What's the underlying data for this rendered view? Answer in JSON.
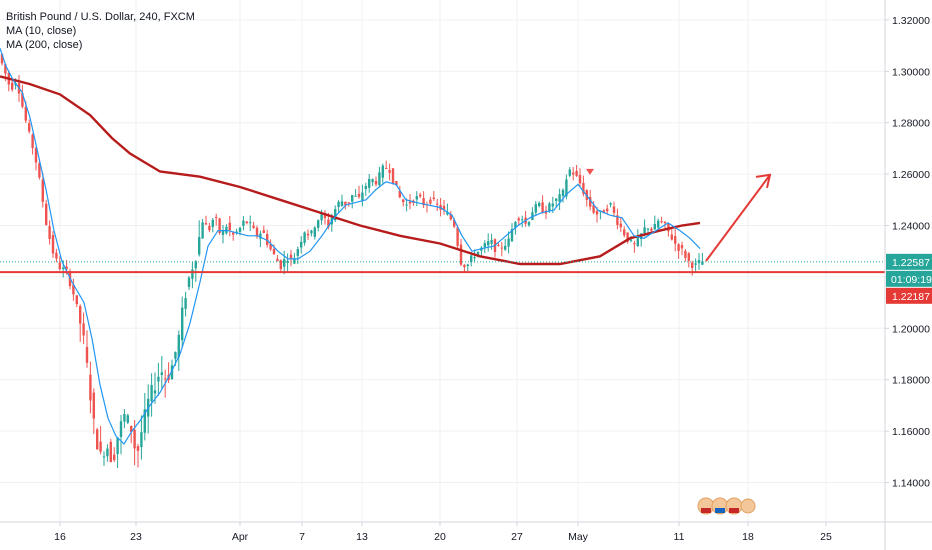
{
  "legend": {
    "title": "British Pound / U.S. Dollar, 240, FXCM",
    "ma1": "MA (10, close)",
    "ma2": "MA (200, close)"
  },
  "colors": {
    "up": "#26a69a",
    "down": "#ef5350",
    "ma10": "#2196f3",
    "ma200": "#b71c1c",
    "support": "#e53935",
    "arrow": "#e53935",
    "current": "#26a69a"
  },
  "price_tags": {
    "current": "1.22587",
    "countdown": "01:09:19",
    "line": "1.22187"
  },
  "events_icon": "economic-events-icon",
  "chart_data": {
    "type": "candlestick",
    "symbol": "GBPUSD",
    "timeframe": "240",
    "x_tick_labels": [
      "16",
      "23",
      "Apr",
      "7",
      "13",
      "20",
      "27",
      "May",
      "11",
      "18",
      "25"
    ],
    "y_tick_labels": [
      "1.14000",
      "1.16000",
      "1.18000",
      "1.20000",
      "1.22000",
      "1.24000",
      "1.26000",
      "1.28000",
      "1.30000",
      "1.32000"
    ],
    "ylim": [
      1.125,
      1.33
    ],
    "grid": true,
    "ma10_path": [
      [
        0,
        1.309
      ],
      [
        6,
        1.302
      ],
      [
        14,
        1.296
      ],
      [
        22,
        1.292
      ],
      [
        30,
        1.282
      ],
      [
        38,
        1.268
      ],
      [
        46,
        1.254
      ],
      [
        54,
        1.238
      ],
      [
        62,
        1.226
      ],
      [
        72,
        1.218
      ],
      [
        84,
        1.21
      ],
      [
        92,
        1.196
      ],
      [
        100,
        1.178
      ],
      [
        108,
        1.165
      ],
      [
        116,
        1.158
      ],
      [
        124,
        1.155
      ],
      [
        132,
        1.16
      ],
      [
        140,
        1.164
      ],
      [
        150,
        1.17
      ],
      [
        160,
        1.175
      ],
      [
        170,
        1.182
      ],
      [
        180,
        1.19
      ],
      [
        190,
        1.202
      ],
      [
        200,
        1.218
      ],
      [
        208,
        1.232
      ],
      [
        218,
        1.238
      ],
      [
        228,
        1.238
      ],
      [
        238,
        1.237
      ],
      [
        248,
        1.236
      ],
      [
        258,
        1.236
      ],
      [
        268,
        1.234
      ],
      [
        278,
        1.23
      ],
      [
        288,
        1.227
      ],
      [
        298,
        1.227
      ],
      [
        310,
        1.23
      ],
      [
        322,
        1.236
      ],
      [
        334,
        1.243
      ],
      [
        346,
        1.248
      ],
      [
        356,
        1.249
      ],
      [
        366,
        1.25
      ],
      [
        376,
        1.254
      ],
      [
        386,
        1.257
      ],
      [
        396,
        1.256
      ],
      [
        406,
        1.25
      ],
      [
        416,
        1.249
      ],
      [
        428,
        1.248
      ],
      [
        440,
        1.247
      ],
      [
        452,
        1.244
      ],
      [
        462,
        1.236
      ],
      [
        472,
        1.23
      ],
      [
        482,
        1.231
      ],
      [
        494,
        1.232
      ],
      [
        506,
        1.236
      ],
      [
        518,
        1.24
      ],
      [
        530,
        1.243
      ],
      [
        542,
        1.245
      ],
      [
        554,
        1.246
      ],
      [
        566,
        1.252
      ],
      [
        578,
        1.256
      ],
      [
        588,
        1.251
      ],
      [
        598,
        1.246
      ],
      [
        610,
        1.244
      ],
      [
        622,
        1.243
      ],
      [
        634,
        1.236
      ],
      [
        644,
        1.235
      ],
      [
        656,
        1.238
      ],
      [
        668,
        1.241
      ],
      [
        680,
        1.238
      ],
      [
        690,
        1.235
      ],
      [
        700,
        1.231
      ]
    ],
    "ma200_path": [
      [
        0,
        1.298
      ],
      [
        30,
        1.295
      ],
      [
        60,
        1.291
      ],
      [
        90,
        1.283
      ],
      [
        112,
        1.274
      ],
      [
        130,
        1.268
      ],
      [
        160,
        1.261
      ],
      [
        200,
        1.259
      ],
      [
        240,
        1.255
      ],
      [
        280,
        1.25
      ],
      [
        320,
        1.245
      ],
      [
        360,
        1.24
      ],
      [
        400,
        1.236
      ],
      [
        440,
        1.233
      ],
      [
        480,
        1.228
      ],
      [
        520,
        1.225
      ],
      [
        560,
        1.225
      ],
      [
        600,
        1.228
      ],
      [
        630,
        1.235
      ],
      [
        660,
        1.238
      ],
      [
        682,
        1.24
      ],
      [
        700,
        1.241
      ]
    ],
    "ohlc_anchor_path": [
      [
        0,
        1.309
      ],
      [
        8,
        1.3
      ],
      [
        14,
        1.293
      ],
      [
        20,
        1.297
      ],
      [
        26,
        1.286
      ],
      [
        32,
        1.276
      ],
      [
        38,
        1.268
      ],
      [
        44,
        1.255
      ],
      [
        50,
        1.24
      ],
      [
        56,
        1.23
      ],
      [
        62,
        1.224
      ],
      [
        70,
        1.222
      ],
      [
        78,
        1.212
      ],
      [
        86,
        1.198
      ],
      [
        92,
        1.18
      ],
      [
        98,
        1.16
      ],
      [
        104,
        1.15
      ],
      [
        110,
        1.155
      ],
      [
        116,
        1.148
      ],
      [
        122,
        1.16
      ],
      [
        128,
        1.166
      ],
      [
        134,
        1.162
      ],
      [
        140,
        1.15
      ],
      [
        146,
        1.162
      ],
      [
        152,
        1.172
      ],
      [
        158,
        1.178
      ],
      [
        164,
        1.184
      ],
      [
        170,
        1.18
      ],
      [
        176,
        1.186
      ],
      [
        182,
        1.196
      ],
      [
        188,
        1.212
      ],
      [
        194,
        1.222
      ],
      [
        200,
        1.23
      ],
      [
        206,
        1.242
      ],
      [
        212,
        1.238
      ],
      [
        218,
        1.244
      ],
      [
        224,
        1.236
      ],
      [
        230,
        1.24
      ],
      [
        236,
        1.236
      ],
      [
        242,
        1.238
      ],
      [
        248,
        1.242
      ],
      [
        254,
        1.24
      ],
      [
        260,
        1.236
      ],
      [
        266,
        1.238
      ],
      [
        272,
        1.232
      ],
      [
        278,
        1.228
      ],
      [
        284,
        1.224
      ],
      [
        290,
        1.228
      ],
      [
        296,
        1.226
      ],
      [
        302,
        1.232
      ],
      [
        308,
        1.238
      ],
      [
        314,
        1.236
      ],
      [
        320,
        1.242
      ],
      [
        326,
        1.244
      ],
      [
        332,
        1.24
      ],
      [
        338,
        1.246
      ],
      [
        344,
        1.25
      ],
      [
        350,
        1.248
      ],
      [
        356,
        1.252
      ],
      [
        362,
        1.25
      ],
      [
        368,
        1.255
      ],
      [
        374,
        1.258
      ],
      [
        380,
        1.257
      ],
      [
        386,
        1.262
      ],
      [
        392,
        1.263
      ],
      [
        398,
        1.256
      ],
      [
        404,
        1.25
      ],
      [
        410,
        1.248
      ],
      [
        416,
        1.25
      ],
      [
        422,
        1.251
      ],
      [
        428,
        1.248
      ],
      [
        434,
        1.25
      ],
      [
        440,
        1.248
      ],
      [
        446,
        1.246
      ],
      [
        452,
        1.244
      ],
      [
        458,
        1.24
      ],
      [
        464,
        1.226
      ],
      [
        470,
        1.224
      ],
      [
        476,
        1.228
      ],
      [
        482,
        1.23
      ],
      [
        488,
        1.232
      ],
      [
        494,
        1.234
      ],
      [
        500,
        1.23
      ],
      [
        506,
        1.232
      ],
      [
        512,
        1.234
      ],
      [
        518,
        1.242
      ],
      [
        524,
        1.244
      ],
      [
        530,
        1.24
      ],
      [
        536,
        1.246
      ],
      [
        542,
        1.248
      ],
      [
        548,
        1.245
      ],
      [
        554,
        1.248
      ],
      [
        560,
        1.25
      ],
      [
        566,
        1.252
      ],
      [
        572,
        1.262
      ],
      [
        578,
        1.26
      ],
      [
        584,
        1.256
      ],
      [
        590,
        1.25
      ],
      [
        596,
        1.246
      ],
      [
        602,
        1.244
      ],
      [
        608,
        1.246
      ],
      [
        614,
        1.248
      ],
      [
        620,
        1.242
      ],
      [
        626,
        1.238
      ],
      [
        632,
        1.234
      ],
      [
        638,
        1.232
      ],
      [
        644,
        1.236
      ],
      [
        650,
        1.24
      ],
      [
        656,
        1.238
      ],
      [
        662,
        1.242
      ],
      [
        668,
        1.24
      ],
      [
        674,
        1.236
      ],
      [
        680,
        1.232
      ],
      [
        686,
        1.23
      ],
      [
        692,
        1.226
      ],
      [
        698,
        1.224
      ],
      [
        704,
        1.226
      ]
    ],
    "annotations": {
      "support_line_price": 1.22187,
      "current_price_line": 1.22587,
      "projection_arrow": {
        "from": [
          706,
          1.2262
        ],
        "to": [
          770,
          1.2597
        ]
      },
      "marker_triangle": [
        590,
        1.2605
      ]
    }
  }
}
